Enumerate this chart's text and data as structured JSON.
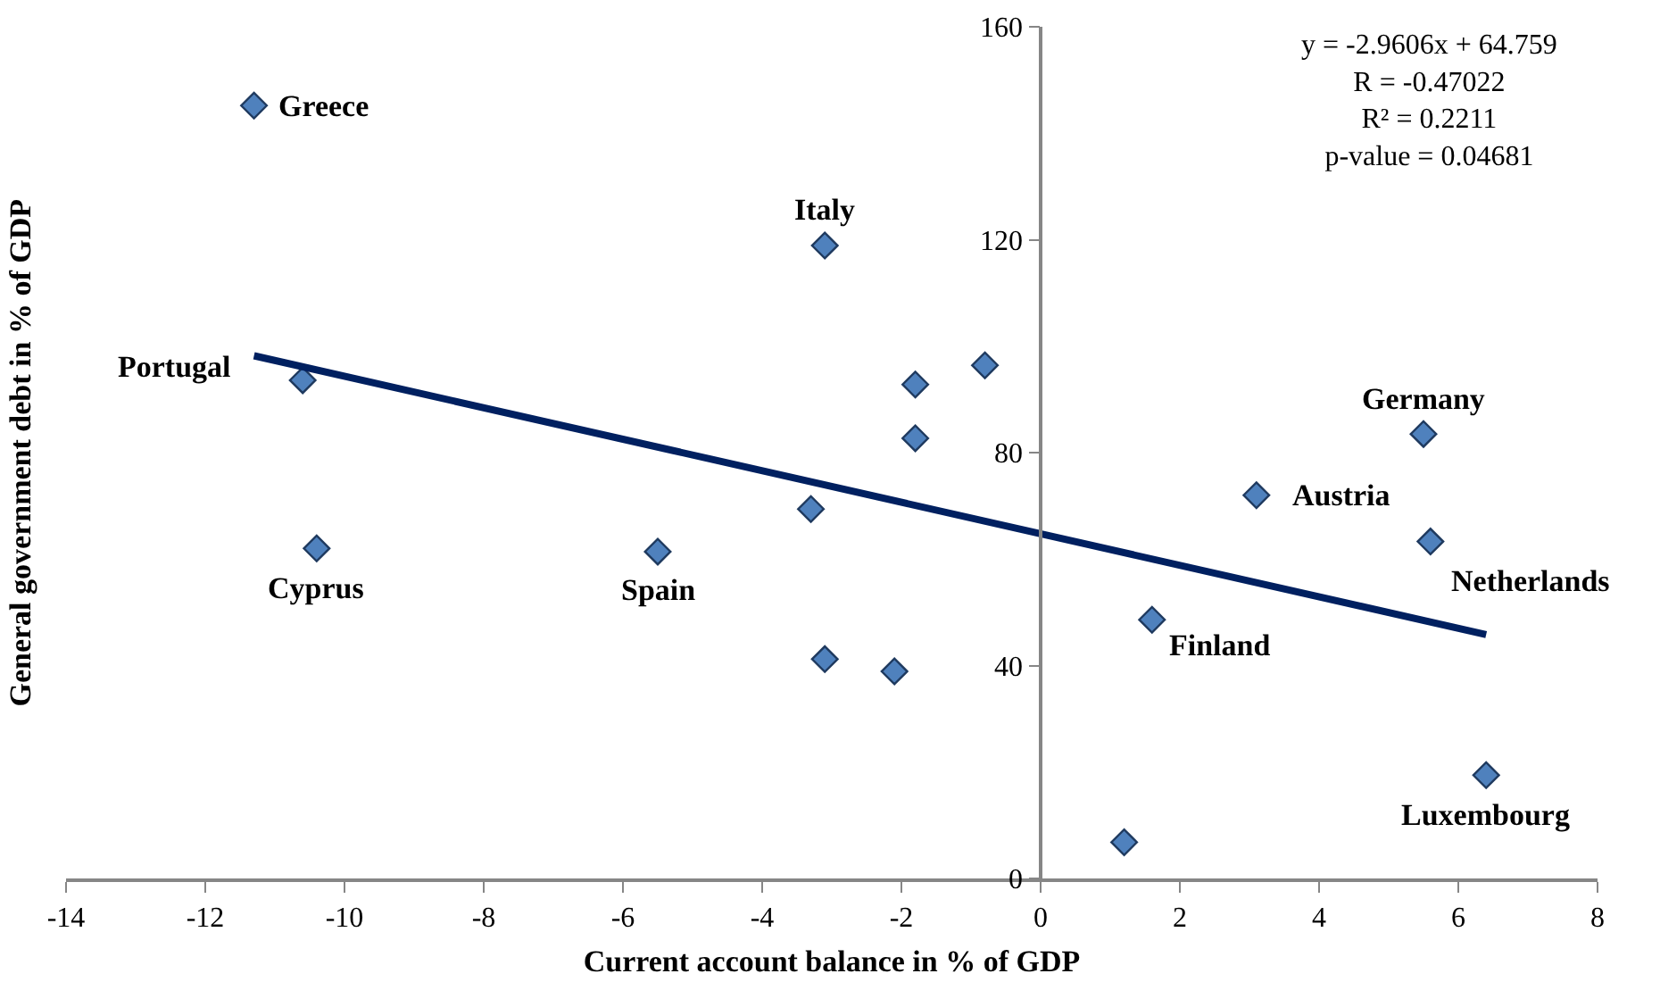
{
  "chart_data": {
    "type": "scatter",
    "xlabel": "Current account balance in % of GDP",
    "ylabel": "General government debt in % of GDP",
    "xlim": [
      -14,
      8
    ],
    "xticks": [
      -14,
      -12,
      -10,
      -8,
      -6,
      -4,
      -2,
      0,
      2,
      4,
      6,
      8
    ],
    "ylim": [
      0,
      160
    ],
    "yticks": [
      0,
      40,
      80,
      120,
      160
    ],
    "grid": false,
    "legend": false,
    "marker": "diamond",
    "series": [
      {
        "color": "#4f81bd",
        "x": [
          -11.3,
          -10.6,
          -10.4,
          -5.5,
          -3.1,
          -1.8,
          -0.8,
          -1.8,
          -3.3,
          -3.1,
          -2.1,
          1.2,
          1.6,
          3.1,
          5.5,
          5.6,
          6.4
        ],
        "values": [
          145.2,
          93.6,
          62.0,
          61.4,
          118.9,
          92.8,
          96.4,
          82.7,
          69.4,
          41.2,
          38.9,
          6.8,
          48.6,
          72.0,
          83.5,
          63.3,
          19.4
        ]
      },
      {
        "type": "line",
        "color": "#002060",
        "line_style": "solid",
        "marker": "none",
        "x": [
          -11.3,
          6.4
        ],
        "values": [
          98.2,
          45.8
        ]
      }
    ],
    "annotations": [
      {
        "text": "Greece",
        "x": -11.3,
        "y": 145.2
      },
      {
        "text": "Portugal",
        "x": -10.6,
        "y": 93.6
      },
      {
        "text": "Cyprus",
        "x": -10.4,
        "y": 62.0
      },
      {
        "text": "Spain",
        "x": -5.5,
        "y": 61.4
      },
      {
        "text": "Italy",
        "x": -3.1,
        "y": 118.9
      },
      {
        "text": "Finland",
        "x": 1.6,
        "y": 48.6
      },
      {
        "text": "Austria",
        "x": 3.1,
        "y": 72.0
      },
      {
        "text": "Germany",
        "x": 5.5,
        "y": 83.5
      },
      {
        "text": "Netherlands",
        "x": 5.6,
        "y": 63.3
      },
      {
        "text": "Luxembourg",
        "x": 6.4,
        "y": 19.4
      },
      "y = -2.9606x + 64.759\nR = -0.47022\nR² = 0.2211\np-value = 0.04681"
    ]
  }
}
